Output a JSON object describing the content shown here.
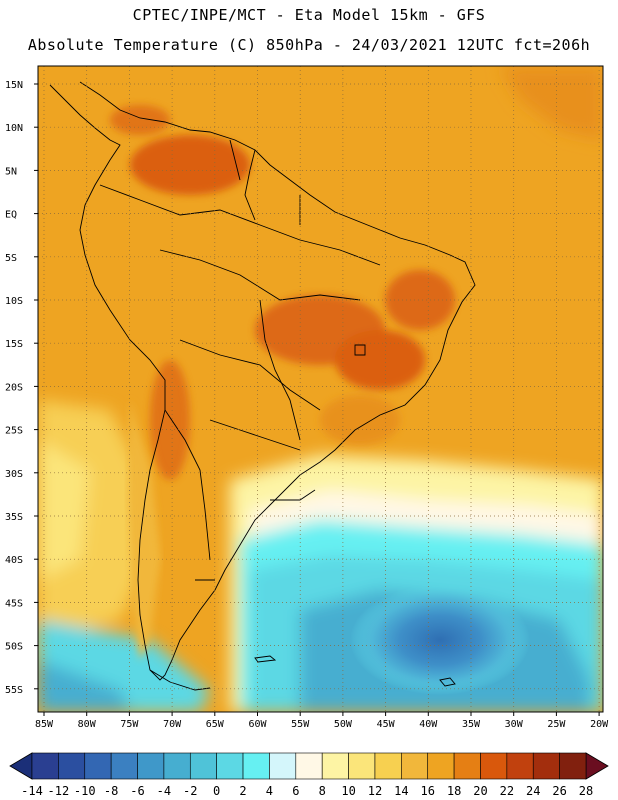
{
  "title_line1": "CPTEC/INPE/MCT -  Eta Model 15km - GFS",
  "title_line2": "Absolute Temperature (C) 850hPa - 24/03/2021 12UTC fct=206h",
  "lat_labels": [
    "15N",
    "10N",
    "5N",
    "EQ",
    "5S",
    "10S",
    "15S",
    "20S",
    "25S",
    "30S",
    "35S",
    "40S",
    "45S",
    "50S",
    "55S"
  ],
  "lon_labels": [
    "85W",
    "80W",
    "75W",
    "70W",
    "65W",
    "60W",
    "55W",
    "50W",
    "45W",
    "40W",
    "35W",
    "30W",
    "25W",
    "20W"
  ],
  "colorbar": {
    "ticks": [
      "-14",
      "-12",
      "-10",
      "-8",
      "-6",
      "-4",
      "-2",
      "0",
      "2",
      "4",
      "6",
      "8",
      "10",
      "12",
      "14",
      "16",
      "18",
      "20",
      "22",
      "24",
      "26",
      "28"
    ],
    "colors": [
      "#2a3f91",
      "#2b4fa0",
      "#3367b3",
      "#3b80c1",
      "#3f98c9",
      "#46aed0",
      "#4fc3d8",
      "#5cd8e4",
      "#66f0f2",
      "#d4f6fb",
      "#fff8e6",
      "#fdf4a4",
      "#fbe57a",
      "#f7d050",
      "#f1b73b",
      "#eea422",
      "#e57f14",
      "#d9580c",
      "#c1410e",
      "#a32e0d",
      "#81200e"
    ],
    "low_arrow_color": "#1b2f78",
    "high_arrow_color": "#6a0e20"
  }
}
